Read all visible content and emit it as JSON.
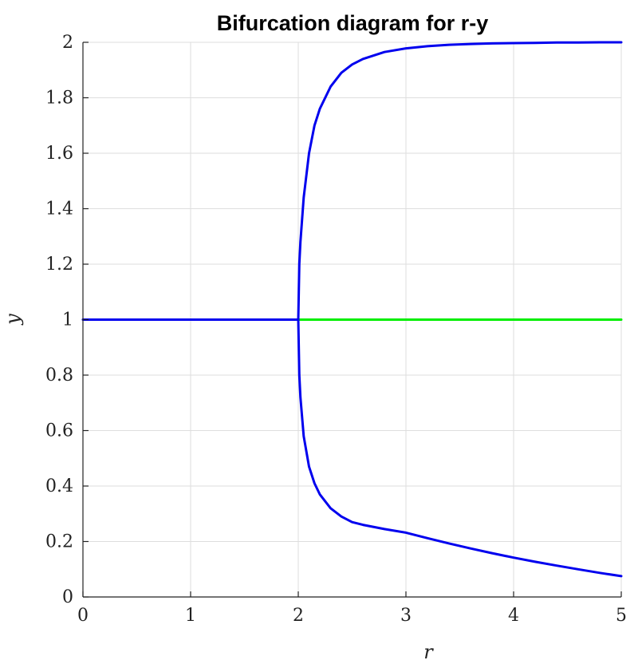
{
  "chart_data": {
    "type": "line",
    "title": "Bifurcation diagram for r-y",
    "xlabel": "r",
    "ylabel": "y",
    "xlim": [
      0,
      5
    ],
    "ylim": [
      0,
      2
    ],
    "x_ticks": [
      "0",
      "1",
      "2",
      "3",
      "4",
      "5"
    ],
    "y_ticks": [
      "0",
      "0.2",
      "0.4",
      "0.6",
      "0.8",
      "1",
      "1.2",
      "1.4",
      "1.6",
      "1.8",
      "2"
    ],
    "grid": true,
    "series": [
      {
        "color": "#0000ee",
        "x": [
          0,
          2
        ],
        "y": [
          1,
          1
        ]
      },
      {
        "color": "#00ee00",
        "x": [
          2,
          5
        ],
        "y": [
          1,
          1
        ]
      },
      {
        "color": "#0000ee",
        "x": [
          2.0,
          2.01,
          2.02,
          2.05,
          2.1,
          2.15,
          2.2,
          2.3,
          2.4,
          2.5,
          2.6,
          2.8,
          3.0,
          3.2,
          3.4,
          3.6,
          3.8,
          4.0,
          4.2,
          4.4,
          4.6,
          4.8,
          5.0
        ],
        "y": [
          1.0,
          1.2,
          1.28,
          1.44,
          1.6,
          1.7,
          1.76,
          1.84,
          1.89,
          1.92,
          1.94,
          1.965,
          1.978,
          1.986,
          1.991,
          1.994,
          1.996,
          1.997,
          1.998,
          1.999,
          1.999,
          2.0,
          2.0
        ]
      },
      {
        "color": "#0000ee",
        "x": [
          2.0,
          2.01,
          2.02,
          2.05,
          2.1,
          2.15,
          2.2,
          2.3,
          2.4,
          2.5,
          2.6,
          2.8,
          3.0,
          3.2,
          3.4,
          3.6,
          3.8,
          4.0,
          4.2,
          4.4,
          4.6,
          4.8,
          5.0
        ],
        "y": [
          1.0,
          0.8,
          0.72,
          0.58,
          0.47,
          0.41,
          0.37,
          0.32,
          0.29,
          0.27,
          0.26,
          0.245,
          0.232,
          0.212,
          0.193,
          0.175,
          0.158,
          0.142,
          0.127,
          0.113,
          0.1,
          0.087,
          0.075
        ]
      }
    ]
  }
}
